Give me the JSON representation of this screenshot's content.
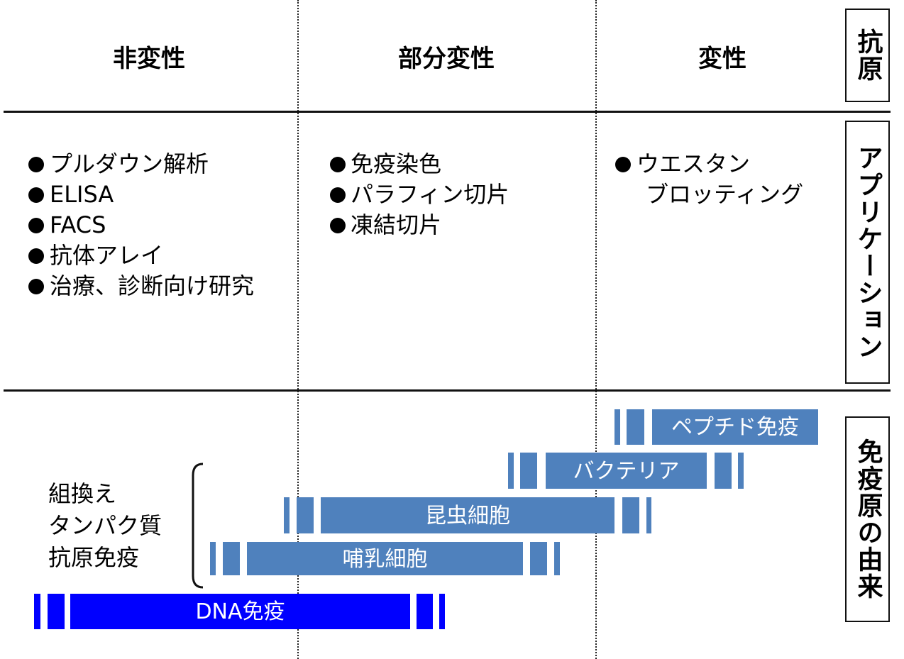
{
  "columns": [
    "非変性",
    "部分変性",
    "変性"
  ],
  "row_labels": [
    "抗原",
    "アプリケーション",
    "免疫原の由来"
  ],
  "applications": [
    [
      "プルダウン解析",
      "ELISA",
      "FACS",
      "抗体アレイ",
      "治療、診断向け研究"
    ],
    [
      "免疫染色",
      "パラフィン切片",
      "凍結切片"
    ],
    [
      [
        "ウエスタン",
        "ブロッティング"
      ]
    ]
  ],
  "bracket_label": [
    "組換え",
    "タンパク質",
    "抗原免疫"
  ],
  "immunogens": [
    "ペプチド免疫",
    "バクテリア",
    "昆虫細胞",
    "哺乳細胞",
    "DNA免疫"
  ]
}
